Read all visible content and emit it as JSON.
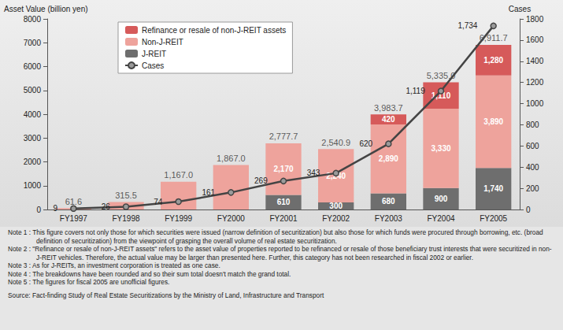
{
  "chart_data": {
    "type": "bar",
    "stacked": true,
    "data_labels": true,
    "grid": false,
    "legend": "upper left",
    "y_label": "Asset Value (billion yen)",
    "y2_label": "Cases",
    "categories": [
      "FY1997",
      "FY1998",
      "FY1999",
      "FY2000",
      "FY2001",
      "FY2002",
      "FY2003",
      "FY2004",
      "FY2005"
    ],
    "ylim": [
      0,
      8000
    ],
    "yticks": [
      0,
      1000,
      2000,
      3000,
      4000,
      5000,
      6000,
      7000,
      8000
    ],
    "y2lim": [
      0,
      1800
    ],
    "y2ticks": [
      0,
      200,
      400,
      600,
      800,
      1000,
      1200,
      1400,
      1600,
      1800
    ],
    "series": [
      {
        "name": "Refinance or resale of non-J-REIT assets",
        "color": "#d65a5a",
        "values": [
          null,
          null,
          null,
          null,
          null,
          null,
          420,
          1110,
          1280
        ],
        "value_labels": [
          null,
          null,
          null,
          null,
          null,
          null,
          "420",
          "1,110",
          "1,280"
        ]
      },
      {
        "name": "Non-J-REIT",
        "color": "#eea39c",
        "values": [
          61.6,
          315.5,
          1167.0,
          1867.0,
          2170,
          2240,
          2890,
          3330,
          3890
        ],
        "value_labels": [
          null,
          null,
          null,
          null,
          "2,170",
          "2,240",
          "2,890",
          "3,330",
          "3,890"
        ]
      },
      {
        "name": "J-REIT",
        "color": "#6e6e6e",
        "values": [
          null,
          null,
          null,
          null,
          610,
          300,
          680,
          900,
          1740
        ],
        "value_labels": [
          null,
          null,
          null,
          null,
          "610",
          "300",
          "680",
          "900",
          "1,740"
        ]
      },
      {
        "name": "Cases",
        "type": "line",
        "axis": "y2",
        "color": "#444444",
        "marker": "circle",
        "values": [
          9,
          26,
          74,
          161,
          269,
          343,
          620,
          1119,
          1734
        ],
        "value_labels": [
          "9",
          "26",
          "74",
          "161",
          "269",
          "343",
          "620",
          "1,119",
          "1,734"
        ]
      }
    ],
    "totals": [
      61.6,
      315.5,
      1167.0,
      1867.0,
      2777.7,
      2540.9,
      3983.7,
      5335.0,
      6911.7
    ],
    "total_labels": [
      "61.6",
      "315.5",
      "1,167.0",
      "1,867.0",
      "2,777.7",
      "2,540.9",
      "3,983.7",
      "5,335.0",
      "6,911.7"
    ],
    "notes": [
      "Note 1 : This figure covers not only those for which securities were issued (narrow definition of securitization) but also those for which funds were procured through borrowing, etc. (broad definition of securitization) from the viewpoint of grasping the overall volume of real estate securitization.",
      "Note 2 : \"Refinance or resale of non-J-REIT assets\" refers to the asset value of properties reported to be refinanced or resale of those beneficiary trust interests that were securitized in non-J-REIT vehicles. Therefore, the actual value may be larger than presented here. Further, this category has not been researched in fiscal 2002 or earlier.",
      "Note 3 : As for J-REITs, an investment corporation is treated as one case.",
      "Note 4 : The breakdowns have been rounded and so their sum total doesn't match the grand total.",
      "Note 5 : The figures for fiscal 2005 are unofficial figures."
    ],
    "source": "Source: Fact-finding Study of Real Estate Securitizations by the Ministry of Land, Infrastructure and Transport"
  }
}
